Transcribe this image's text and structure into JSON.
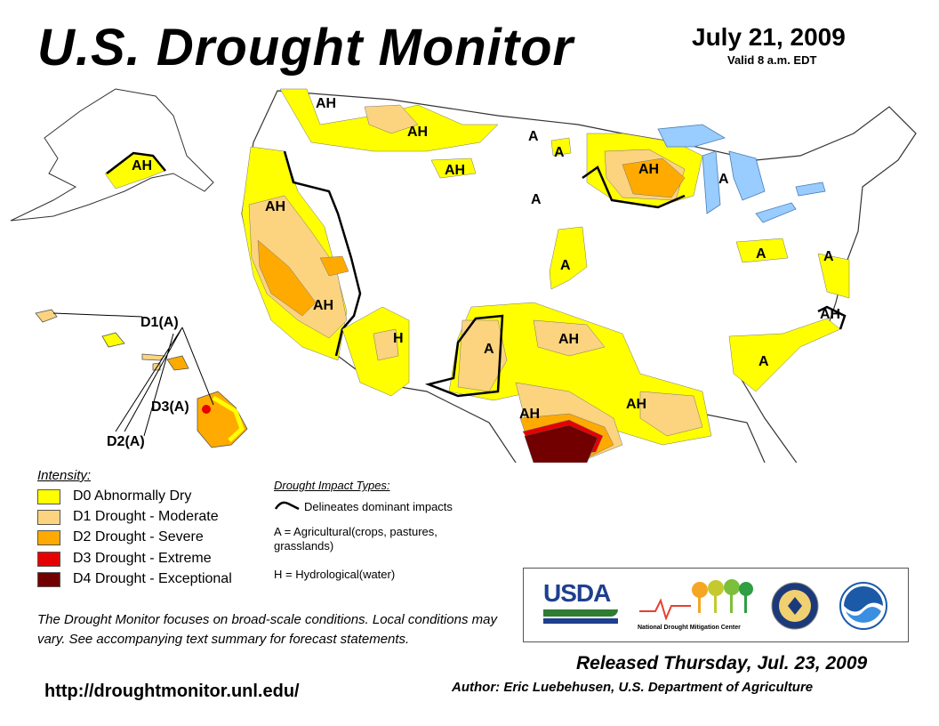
{
  "header": {
    "title": "U.S. Drought Monitor",
    "date": "July 21, 2009",
    "valid": "Valid 8 a.m. EDT"
  },
  "colors": {
    "D0": "#ffff00",
    "D1": "#fcd37f",
    "D2": "#ffaa00",
    "D3": "#e60000",
    "D4": "#730000",
    "water": "#99ccff",
    "boundary": "#000000"
  },
  "map_labels": {
    "ah_nw": "AH",
    "ah_mt": "AH",
    "ah_mt2": "AH",
    "a_nd": "A",
    "a_nd2": "A",
    "a_sd": "A",
    "ah_mn": "AH",
    "a_mi": "A",
    "ah_ca": "AH",
    "ah_nv": "AH",
    "h_ut": "H",
    "a_ne": "A",
    "a_nm": "A",
    "ah_ok": "AH",
    "a_oh": "A",
    "a_va": "A",
    "ah_nc": "AH",
    "a_ga": "A",
    "ah_tx": "AH",
    "ah_la": "AH",
    "ah_ak": "AH",
    "hi_d1": "D1(A)",
    "hi_d3": "D3(A)",
    "hi_d2": "D2(A)"
  },
  "legend": {
    "title": "Intensity:",
    "items": [
      {
        "key": "D0",
        "label": "D0 Abnormally Dry"
      },
      {
        "key": "D1",
        "label": "D1 Drought - Moderate"
      },
      {
        "key": "D2",
        "label": "D2 Drought - Severe"
      },
      {
        "key": "D3",
        "label": "D3 Drought - Extreme"
      },
      {
        "key": "D4",
        "label": "D4 Drought - Exceptional"
      }
    ]
  },
  "impacts": {
    "title": "Drought Impact Types:",
    "delineates": "Delineates dominant impacts",
    "agri_1": "A = Agricultural(crops, pastures,",
    "agri_2": "grasslands)",
    "hydro": "H = Hydrological(water)"
  },
  "note": "The Drought Monitor focuses on broad-scale conditions. Local conditions may vary. See accompanying text summary for forecast statements.",
  "url": "http://droughtmonitor.unl.edu/",
  "logos": {
    "usda": "USDA",
    "ndmc": "National Drought Mitigation Center"
  },
  "released": "Released Thursday, Jul. 23, 2009",
  "author": "Author: Eric Luebehusen, U.S. Department of Agriculture"
}
